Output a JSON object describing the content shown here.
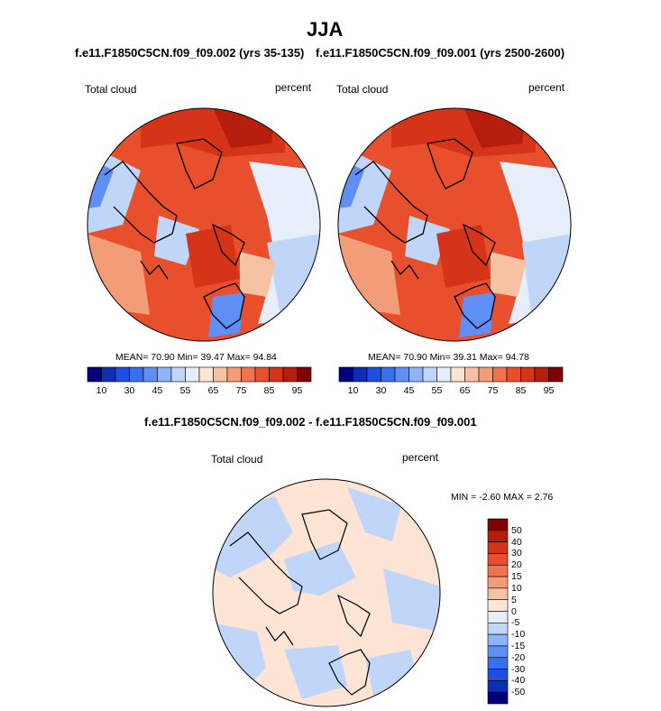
{
  "figure": {
    "title": "JJA",
    "left_subtitle": "f.e11.F1850C5CN.f09_f09.002 (yrs 35-135)",
    "right_subtitle": "f.e11.F1850C5CN.f09_f09.001 (yrs 2500-2600)",
    "diff_subtitle": "f.e11.F1850C5CN.f09_f09.002 - f.e11.F1850C5CN.f09_f09.001"
  },
  "panels": {
    "left": {
      "variable": "Total cloud",
      "units": "percent",
      "stats_text": "MEAN=  70.90  Min=  39.47  Max=  94.84"
    },
    "right": {
      "variable": "Total cloud",
      "units": "percent",
      "stats_text": "MEAN=  70.90  Min=  39.31  Max=  94.78"
    },
    "diff": {
      "variable": "Total cloud",
      "units": "percent",
      "stats_text": "MIN =  -2.60 MAX =   2.76"
    }
  },
  "colorbar_main": {
    "colors": [
      "#00007f",
      "#0b2fb5",
      "#1f4fe0",
      "#3a6ef0",
      "#5f8ff4",
      "#8fb3f6",
      "#c0d6f8",
      "#e6eefa",
      "#fde4d4",
      "#f7c2a4",
      "#f39d78",
      "#ef7350",
      "#e84f2d",
      "#d63419",
      "#b51d0c",
      "#7f0000"
    ],
    "tick_labels": [
      "10",
      "30",
      "45",
      "55",
      "65",
      "75",
      "85",
      "95"
    ]
  },
  "colorbar_diff": {
    "colors": [
      "#7f0000",
      "#b51d0c",
      "#d63419",
      "#e84f2d",
      "#ef7350",
      "#f39d78",
      "#f7c2a4",
      "#fde4d4",
      "#e6eefa",
      "#c0d6f8",
      "#8fb3f6",
      "#5f8ff4",
      "#3a6ef0",
      "#1f4fe0",
      "#0b2fb5",
      "#00007f"
    ],
    "tick_labels": [
      "50",
      "40",
      "30",
      "20",
      "15",
      "10",
      "5",
      "0",
      "-5",
      "-10",
      "-15",
      "-20",
      "-30",
      "-40",
      "-50"
    ]
  },
  "map_colors": {
    "high": "#e84f2d",
    "higher": "#d63419",
    "highest": "#b51d0c",
    "mid": "#ef7350",
    "midlow": "#f39d78",
    "low": "#f7c2a4",
    "lowest": "#fde4d4",
    "blue_light": "#e6eefa",
    "blue": "#c0d6f8",
    "blue_mid": "#8fb3f6",
    "blue_dark": "#5f8ff4",
    "diff_pos": "#fde4d4",
    "diff_neg": "#c0d6f8"
  }
}
